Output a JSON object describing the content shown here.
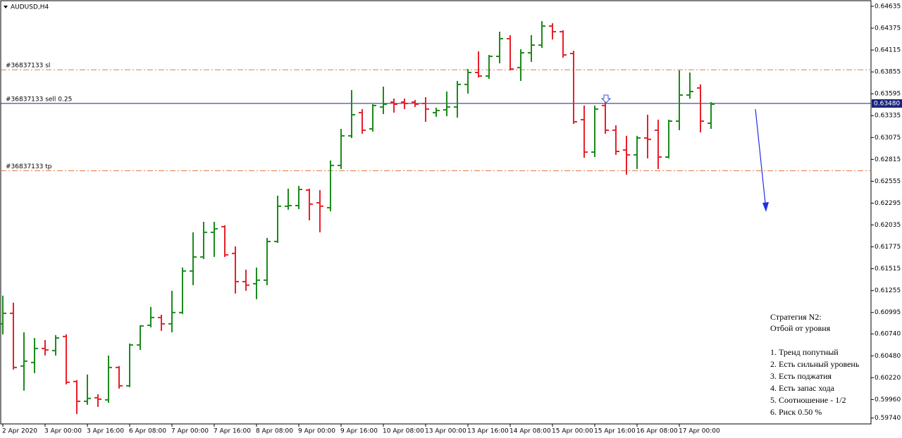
{
  "chart_data": {
    "type": "ohlc",
    "title": "AUDUSD,H4",
    "categories": [
      "2 Apr 2020",
      null,
      null,
      null,
      "3 Apr 00:00",
      null,
      null,
      null,
      "3 Apr 16:00",
      null,
      null,
      null,
      "6 Apr 08:00",
      null,
      null,
      null,
      "7 Apr 00:00",
      null,
      null,
      null,
      "7 Apr 16:00",
      null,
      null,
      null,
      "8 Apr 08:00",
      null,
      null,
      null,
      "9 Apr 00:00",
      null,
      null,
      null,
      "9 Apr 16:00",
      null,
      null,
      null,
      "10 Apr 08:00",
      null,
      null,
      null,
      "13 Apr 00:00",
      null,
      null,
      null,
      "13 Apr 16:00",
      null,
      null,
      null,
      "14 Apr 08:00",
      null,
      null,
      null,
      "15 Apr 00:00",
      null,
      null,
      null,
      "15 Apr 16:00",
      null,
      null,
      null,
      "16 Apr 08:00",
      null,
      null,
      null,
      "17 Apr 00:00",
      null,
      null,
      null
    ],
    "open": [
      0.6086,
      0.60985,
      0.60358,
      0.604,
      0.60567,
      0.60542,
      0.60709,
      0.60174,
      0.59939,
      0.59981,
      0.59956,
      0.60341,
      0.60123,
      0.60609,
      0.60843,
      0.60935,
      0.6086,
      0.60994,
      0.61488,
      0.61655,
      0.61948,
      0.62015,
      0.61697,
      0.61362,
      0.61337,
      0.61379,
      0.61839,
      0.62258,
      0.62266,
      0.6245,
      0.62299,
      0.62241,
      0.62743,
      0.63095,
      0.63371,
      0.63178,
      0.63438,
      0.63496,
      0.63496,
      0.63496,
      0.6348,
      0.63371,
      0.63404,
      0.63438,
      0.63706,
      0.63848,
      0.63806,
      0.6404,
      0.6425,
      0.63907,
      0.64082,
      0.64174,
      0.644,
      0.64333,
      0.64074,
      0.63287,
      0.62902,
      0.63455,
      0.63162,
      0.62927,
      0.62869,
      0.63069,
      0.63162,
      0.62843,
      0.6327,
      0.6358,
      0.63664,
      0.63245
    ],
    "high": [
      0.61195,
      0.61111,
      0.60759,
      0.60692,
      0.60667,
      0.60726,
      0.60734,
      0.6019,
      0.60257,
      0.60023,
      0.60483,
      0.60358,
      0.60626,
      0.60843,
      0.61061,
      0.60969,
      0.61253,
      0.61529,
      0.61948,
      0.62073,
      0.62073,
      0.62032,
      0.61781,
      0.61504,
      0.61529,
      0.61881,
      0.62383,
      0.62467,
      0.625,
      0.62467,
      0.6245,
      0.62802,
      0.63178,
      0.63639,
      0.63413,
      0.63471,
      0.6368,
      0.63538,
      0.63538,
      0.63521,
      0.63555,
      0.63429,
      0.63622,
      0.63748,
      0.6389,
      0.64099,
      0.64057,
      0.64333,
      0.64292,
      0.64124,
      0.64292,
      0.64459,
      0.64434,
      0.6435,
      0.64107,
      0.63455,
      0.63455,
      0.63496,
      0.6322,
      0.63095,
      0.63095,
      0.63346,
      0.63287,
      0.63287,
      0.63873,
      0.63848,
      0.63706,
      0.63496
    ],
    "low": [
      0.60734,
      0.60316,
      0.60065,
      0.60274,
      0.60483,
      0.60483,
      0.6014,
      0.59788,
      0.59897,
      0.59872,
      0.59922,
      0.6009,
      0.60107,
      0.6055,
      0.60818,
      0.60776,
      0.60759,
      0.60977,
      0.6132,
      0.6163,
      0.61655,
      0.61655,
      0.6122,
      0.61253,
      0.61153,
      0.6132,
      0.61822,
      0.62216,
      0.62224,
      0.6209,
      0.61948,
      0.62199,
      0.62701,
      0.63069,
      0.6312,
      0.63145,
      0.63354,
      0.63371,
      0.63413,
      0.63438,
      0.63262,
      0.63321,
      0.63329,
      0.63312,
      0.63597,
      0.63789,
      0.63773,
      0.63957,
      0.63873,
      0.63748,
      0.63974,
      0.64141,
      0.64241,
      0.64024,
      0.63237,
      0.62835,
      0.62843,
      0.6312,
      0.62869,
      0.62634,
      0.62701,
      0.62827,
      0.62701,
      0.62827,
      0.63162,
      0.63538,
      0.63136,
      0.63178
    ],
    "close": [
      0.60985,
      0.60341,
      0.60416,
      0.60567,
      0.6055,
      0.60692,
      0.60165,
      0.59939,
      0.59973,
      0.59964,
      0.60341,
      0.60123,
      0.60609,
      0.60835,
      0.60935,
      0.6086,
      0.60994,
      0.61488,
      0.61655,
      0.61948,
      0.6199,
      0.6168,
      0.61362,
      0.6132,
      0.61379,
      0.61839,
      0.62258,
      0.62266,
      0.62458,
      0.62283,
      0.62258,
      0.62743,
      0.63095,
      0.63346,
      0.63162,
      0.63455,
      0.63471,
      0.63471,
      0.6348,
      0.63471,
      0.63413,
      0.63396,
      0.63438,
      0.63706,
      0.63848,
      0.63806,
      0.6404,
      0.6425,
      0.6389,
      0.64082,
      0.64174,
      0.644,
      0.64333,
      0.64057,
      0.63262,
      0.62902,
      0.63413,
      0.63162,
      0.6291,
      0.62869,
      0.63069,
      0.63053,
      0.62843,
      0.6327,
      0.6358,
      0.63622,
      0.6327,
      0.63471
    ],
    "up_color": "#1c8a1c",
    "down_color": "#e8202a",
    "ylim": [
      0.5967,
      0.6471
    ],
    "yticks": [
      0.64635,
      0.64375,
      0.64115,
      0.63855,
      0.63595,
      0.63335,
      0.63075,
      0.62815,
      0.62555,
      0.62295,
      0.62035,
      0.61775,
      0.61515,
      0.61255,
      0.60995,
      {
        "value": 0.6074,
        "label": "0.60740"
      },
      {
        "value": 0.6048,
        "label": "0.60480"
      },
      {
        "value": 0.6022,
        "label": "0.60220"
      },
      {
        "value": 0.5996,
        "label": "0.59960"
      },
      {
        "value": 0.5974,
        "label": "0.59740"
      }
    ],
    "grid": false,
    "levels": [
      {
        "name": "#36837133 sl",
        "value": 0.6388,
        "color": "#e07a45",
        "style": "dashdot"
      },
      {
        "name": "#36837133 sell 0.25",
        "value": 0.6348,
        "color": "#1a237e",
        "style": "solid"
      },
      {
        "name": "#36837133 tp",
        "value": 0.6268,
        "color": "#e07a45",
        "style": "dashdot"
      }
    ],
    "bid": {
      "value": 0.6348,
      "label": "0.63480"
    },
    "annotation": {
      "title": "Стратегия N2:",
      "subtitle": "Отбой от уровня",
      "items": [
        "1. Тренд попутный",
        "2. Есть сильный уровень",
        "3. Есть поджатия",
        "4. Есть запас хода",
        "5. Соотношение - 1/2",
        "6. Риск 0.50 %"
      ]
    }
  }
}
